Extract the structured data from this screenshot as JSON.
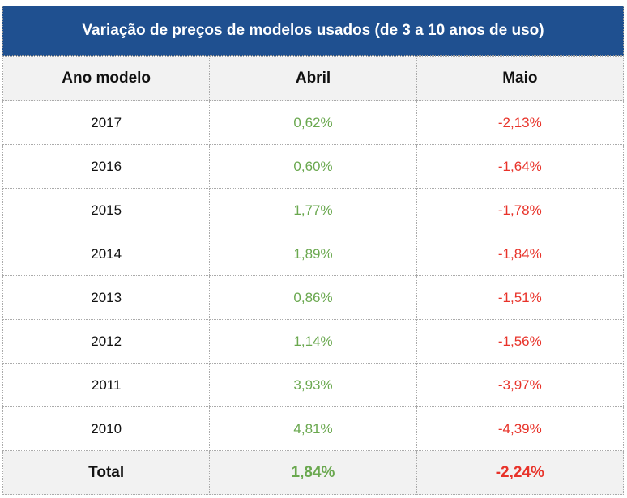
{
  "title": "Variação de preços de modelos usados (de 3 a 10 anos de uso)",
  "headers": [
    "Ano modelo",
    "Abril",
    "Maio"
  ],
  "rows": [
    {
      "year": "2017",
      "abril": "0,62%",
      "maio": "-2,13%"
    },
    {
      "year": "2016",
      "abril": "0,60%",
      "maio": "-1,64%"
    },
    {
      "year": "2015",
      "abril": "1,77%",
      "maio": "-1,78%"
    },
    {
      "year": "2014",
      "abril": "1,89%",
      "maio": "-1,84%"
    },
    {
      "year": "2013",
      "abril": "0,86%",
      "maio": "-1,51%"
    },
    {
      "year": "2012",
      "abril": "1,14%",
      "maio": "-1,56%"
    },
    {
      "year": "2011",
      "abril": "3,93%",
      "maio": "-3,97%"
    },
    {
      "year": "2010",
      "abril": "4,81%",
      "maio": "-4,39%"
    }
  ],
  "total": {
    "label": "Total",
    "abril": "1,84%",
    "maio": "-2,24%"
  },
  "colors": {
    "header": "#1f5090",
    "positive": "#6aa84f",
    "negative": "#e8332a"
  }
}
